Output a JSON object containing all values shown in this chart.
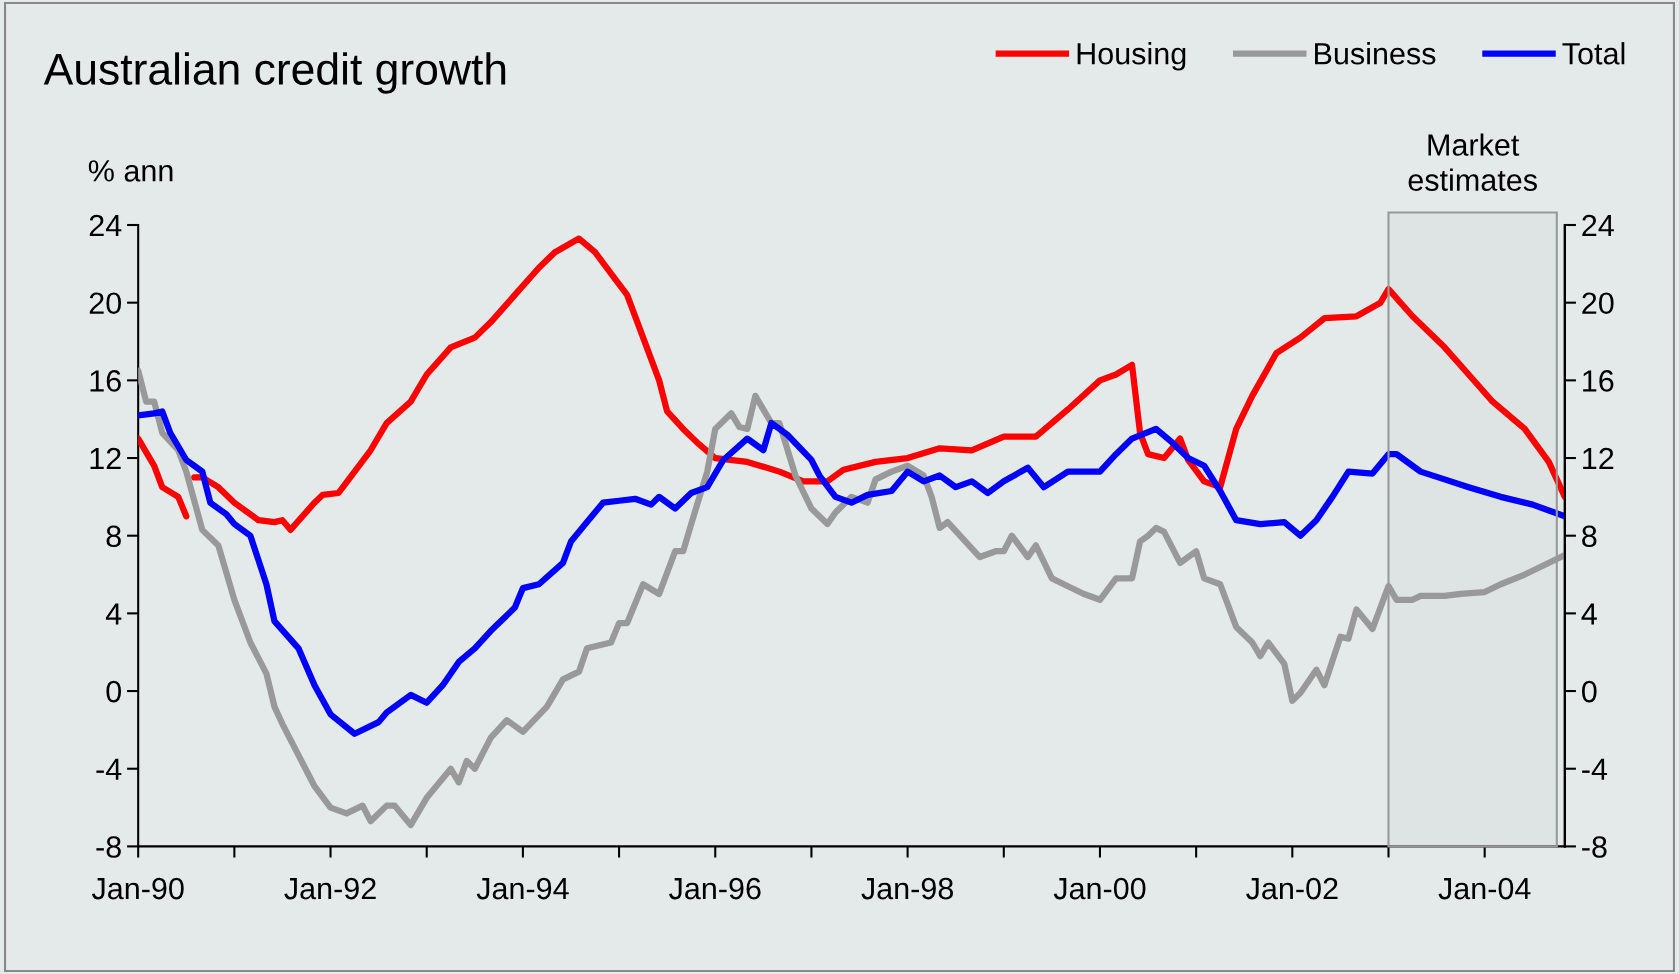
{
  "chart_data": {
    "type": "line",
    "title": "Australian credit growth",
    "ylabel": "% ann",
    "xlim": [
      "1990-01",
      "2004-11"
    ],
    "xticks": [
      {
        "value": "1990-01",
        "label": "Jan-90"
      },
      {
        "value": "1991-01",
        "label": null
      },
      {
        "value": "1992-01",
        "label": "Jan-92"
      },
      {
        "value": "1993-01",
        "label": null
      },
      {
        "value": "1994-01",
        "label": "Jan-94"
      },
      {
        "value": "1995-01",
        "label": null
      },
      {
        "value": "1996-01",
        "label": "Jan-96"
      },
      {
        "value": "1997-01",
        "label": null
      },
      {
        "value": "1998-01",
        "label": "Jan-98"
      },
      {
        "value": "1999-01",
        "label": null
      },
      {
        "value": "2000-01",
        "label": "Jan-00"
      },
      {
        "value": "2001-01",
        "label": null
      },
      {
        "value": "2002-01",
        "label": "Jan-02"
      },
      {
        "value": "2003-01",
        "label": null
      },
      {
        "value": "2004-01",
        "label": "Jan-04"
      }
    ],
    "ylim": [
      -8,
      24
    ],
    "yticks": [
      -8,
      -4,
      0,
      4,
      8,
      12,
      16,
      20,
      24
    ],
    "y2lim": [
      -8,
      24
    ],
    "y2ticks": [
      -8,
      -4,
      0,
      4,
      8,
      12,
      16,
      20,
      24
    ],
    "grid": false,
    "legend": "top right",
    "marker": "none",
    "line_style": "solid",
    "bands": [
      {
        "axis": "x",
        "from": "2003-01",
        "to": "2004-10",
        "label": "Market\nestimates",
        "color": "#999999"
      }
    ],
    "series": [
      {
        "name": "Housing",
        "color": "#ff0000",
        "x": [
          "1990-01",
          "1990-03",
          "1990-04",
          "1990-06",
          "1990-07",
          "1990-07-20",
          "1990-08",
          "1990-09",
          "1990-11",
          "1991-01",
          "1991-04",
          "1991-06",
          "1991-07",
          "1991-08",
          "1991-11",
          "1991-12",
          "1992-02",
          "1992-04",
          "1992-06",
          "1992-08",
          "1992-11",
          "1993-01",
          "1993-04",
          "1993-07",
          "1993-09",
          "1993-12",
          "1994-03",
          "1994-05",
          "1994-08",
          "1994-10",
          "1994-12",
          "1995-02",
          "1995-04",
          "1995-06",
          "1995-07",
          "1995-09",
          "1995-11",
          "1996-01",
          "1996-05",
          "1996-09",
          "1996-12",
          "1997-03",
          "1997-05",
          "1997-09",
          "1998-01",
          "1998-05",
          "1998-09",
          "1999-01",
          "1999-05",
          "1999-09",
          "2000-01",
          "2000-03",
          "2000-05",
          "2000-06",
          "2000-07",
          "2000-09",
          "2000-11",
          "2000-12",
          "2001-02",
          "2001-04",
          "2001-06",
          "2001-08",
          "2001-11",
          "2002-02",
          "2002-05",
          "2002-09",
          "2002-12",
          "2003-01",
          "2003-04",
          "2003-08",
          "2003-11",
          "2004-02",
          "2004-06",
          "2004-09",
          "2004-11"
        ],
        "values": [
          13.0,
          11.6,
          10.5,
          10.0,
          9.0,
          null,
          11.0,
          11.0,
          10.5,
          9.7,
          8.8,
          8.7,
          8.8,
          8.3,
          9.7,
          10.1,
          10.2,
          11.3,
          12.4,
          13.8,
          14.9,
          16.3,
          17.7,
          18.2,
          19.0,
          20.4,
          21.8,
          22.6,
          23.3,
          22.6,
          21.5,
          20.4,
          18.2,
          16.0,
          14.4,
          13.5,
          12.7,
          12.0,
          11.8,
          11.3,
          10.8,
          10.8,
          11.4,
          11.8,
          12.0,
          12.5,
          12.4,
          13.1,
          13.1,
          14.5,
          16.0,
          16.3,
          16.8,
          13.3,
          12.2,
          12.0,
          13.0,
          11.9,
          10.8,
          10.5,
          13.5,
          15.2,
          17.4,
          18.2,
          19.2,
          19.3,
          20.0,
          20.7,
          19.3,
          17.7,
          16.3,
          14.9,
          13.5,
          11.8,
          10.0
        ]
      },
      {
        "name": "Business",
        "color": "#999999",
        "x": [
          "1990-01",
          "1990-02",
          "1990-03",
          "1990-04",
          "1990-06",
          "1990-07",
          "1990-09",
          "1990-11",
          "1991-01",
          "1991-03",
          "1991-05",
          "1991-06",
          "1991-07",
          "1991-09",
          "1991-11",
          "1992-01",
          "1992-03",
          "1992-05",
          "1992-06",
          "1992-08",
          "1992-09",
          "1992-11",
          "1993-01",
          "1993-04",
          "1993-05",
          "1993-06",
          "1993-07",
          "1993-09",
          "1993-11",
          "1994-01",
          "1994-04",
          "1994-06",
          "1994-08",
          "1994-09",
          "1994-12",
          "1995-01",
          "1995-02",
          "1995-04",
          "1995-06",
          "1995-08",
          "1995-09",
          "1995-10",
          "1995-12",
          "1996-01",
          "1996-03",
          "1996-04",
          "1996-05",
          "1996-06",
          "1996-08",
          "1996-09",
          "1996-11",
          "1997-01",
          "1997-03",
          "1997-04",
          "1997-06",
          "1997-08",
          "1997-09",
          "1997-11",
          "1998-01",
          "1998-03",
          "1998-04",
          "1998-05",
          "1998-06",
          "1998-10",
          "1998-12",
          "1999-01",
          "1999-02",
          "1999-04",
          "1999-05",
          "1999-07",
          "1999-09",
          "1999-11",
          "2000-01",
          "2000-03",
          "2000-05",
          "2000-06",
          "2000-07",
          "2000-08",
          "2000-09",
          "2000-11",
          "2001-01",
          "2001-02",
          "2001-04",
          "2001-06",
          "2001-08",
          "2001-09",
          "2001-10",
          "2001-12",
          "2002-01",
          "2002-02",
          "2002-04",
          "2002-05",
          "2002-07",
          "2002-08",
          "2002-09",
          "2002-11",
          "2003-01",
          "2003-02",
          "2003-04",
          "2003-05",
          "2003-08",
          "2003-10",
          "2004-01",
          "2004-03",
          "2004-06",
          "2004-08",
          "2004-11"
        ],
        "values": [
          16.5,
          14.9,
          14.9,
          13.3,
          12.4,
          11.3,
          8.3,
          7.5,
          4.7,
          2.5,
          0.9,
          -0.8,
          -1.7,
          -3.3,
          -4.9,
          -6.0,
          -6.3,
          -5.9,
          -6.7,
          -5.9,
          -5.9,
          -6.9,
          -5.5,
          -4.0,
          -4.7,
          -3.6,
          -4.0,
          -2.4,
          -1.5,
          -2.1,
          -0.8,
          0.6,
          1.0,
          2.2,
          2.5,
          3.5,
          3.5,
          5.5,
          5.0,
          7.2,
          7.2,
          8.6,
          11.3,
          13.5,
          14.3,
          13.6,
          13.5,
          15.2,
          13.8,
          13.8,
          11.1,
          9.4,
          8.6,
          9.2,
          10.0,
          9.7,
          10.9,
          11.3,
          11.6,
          11.1,
          10.0,
          8.4,
          8.7,
          6.9,
          7.2,
          7.2,
          8.0,
          6.9,
          7.5,
          5.8,
          5.4,
          5.0,
          4.7,
          5.8,
          5.8,
          7.7,
          8.0,
          8.4,
          8.2,
          6.6,
          7.2,
          5.8,
          5.5,
          3.3,
          2.5,
          1.8,
          2.5,
          1.4,
          -0.5,
          -0.1,
          1.1,
          0.3,
          2.8,
          2.7,
          4.2,
          3.2,
          5.4,
          4.7,
          4.7,
          4.9,
          4.9,
          5.0,
          5.1,
          5.5,
          6.0,
          6.4,
          7.0
        ]
      },
      {
        "name": "Total",
        "color": "#0000ff",
        "x": [
          "1990-01",
          "1990-03",
          "1990-04",
          "1990-05",
          "1990-07",
          "1990-09",
          "1990-10",
          "1990-12",
          "1991-01",
          "1991-03",
          "1991-05",
          "1991-06",
          "1991-09",
          "1991-11",
          "1992-01",
          "1992-04",
          "1992-07",
          "1992-08",
          "1992-11",
          "1993-01",
          "1993-03",
          "1993-05",
          "1993-07",
          "1993-09",
          "1993-12",
          "1994-01",
          "1994-03",
          "1994-06",
          "1994-07",
          "1994-09",
          "1994-11",
          "1995-01",
          "1995-03",
          "1995-05",
          "1995-06",
          "1995-08",
          "1995-10",
          "1995-12",
          "1996-02",
          "1996-05",
          "1996-07",
          "1996-08",
          "1996-10",
          "1997-01",
          "1997-02",
          "1997-04",
          "1997-06",
          "1997-08",
          "1997-11",
          "1998-01",
          "1998-03",
          "1998-05",
          "1998-07",
          "1998-09",
          "1998-11",
          "1999-01",
          "1999-04",
          "1999-06",
          "1999-09",
          "2000-01",
          "2000-03",
          "2000-05",
          "2000-08",
          "2000-10",
          "2000-12",
          "2001-02",
          "2001-04",
          "2001-06",
          "2001-09",
          "2001-12",
          "2002-02",
          "2002-04",
          "2002-06",
          "2002-08",
          "2002-11",
          "2003-01",
          "2003-02",
          "2003-05",
          "2003-08",
          "2003-11",
          "2004-03",
          "2004-07",
          "2004-11"
        ],
        "values": [
          14.2,
          14.3,
          14.4,
          13.3,
          11.9,
          11.3,
          9.7,
          9.1,
          8.6,
          8.0,
          5.5,
          3.6,
          2.2,
          0.3,
          -1.2,
          -2.2,
          -1.6,
          -1.1,
          -0.2,
          -0.6,
          0.3,
          1.5,
          2.2,
          3.1,
          4.3,
          5.3,
          5.5,
          6.6,
          7.7,
          8.7,
          9.7,
          9.8,
          9.9,
          9.6,
          10.0,
          9.4,
          10.2,
          10.5,
          11.9,
          13.0,
          12.4,
          13.8,
          13.2,
          11.9,
          11.1,
          10.0,
          9.7,
          10.1,
          10.3,
          11.3,
          10.8,
          11.1,
          10.5,
          10.8,
          10.2,
          10.8,
          11.5,
          10.5,
          11.3,
          11.3,
          12.2,
          13.0,
          13.5,
          12.8,
          12.0,
          11.6,
          10.3,
          8.8,
          8.6,
          8.7,
          8.0,
          8.8,
          10.0,
          11.3,
          11.2,
          12.2,
          12.2,
          11.3,
          10.9,
          10.5,
          10.0,
          9.6,
          9.0
        ]
      }
    ]
  }
}
